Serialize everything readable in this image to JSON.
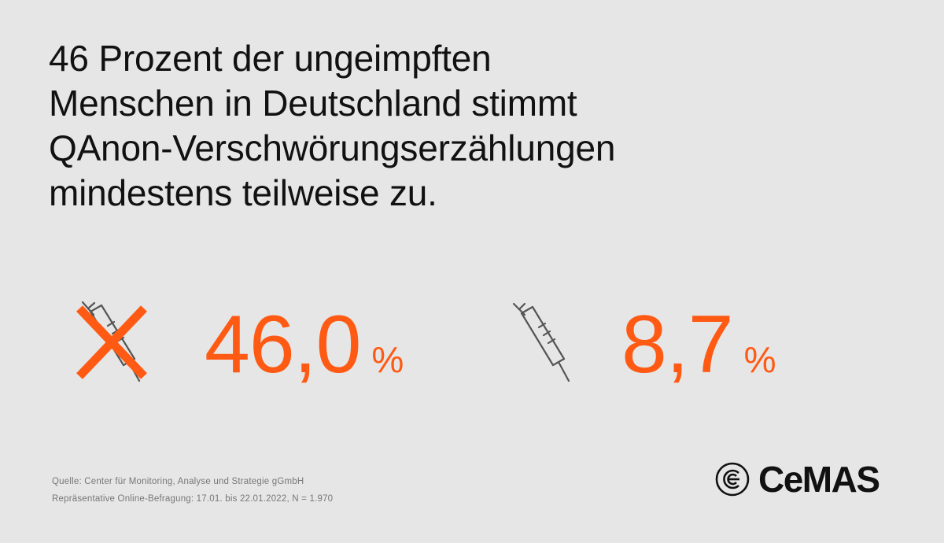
{
  "title_lines": [
    "46 Prozent der ungeimpften",
    "Menschen in Deutschland stimmt",
    "QAnon-Verschwörungserzählungen",
    "mindestens teilweise zu."
  ],
  "chart_data": {
    "type": "table",
    "title": "46 Prozent der ungeimpften Menschen in Deutschland stimmt QAnon-Verschwörungserzählungen mindestens teilweise zu.",
    "categories": [
      "ungeimpft",
      "geimpft"
    ],
    "values": [
      46.0,
      8.7
    ],
    "unit": "%",
    "labels": [
      "46,0",
      "8,7"
    ]
  },
  "stats": {
    "unvaccinated": {
      "value_text": "46,0",
      "unit": "%",
      "icon": "crossed-syringe-icon"
    },
    "vaccinated": {
      "value_text": "8,7",
      "unit": "%",
      "icon": "syringe-icon"
    }
  },
  "footer": {
    "source": "Quelle: Center für Monitoring, Analyse und Strategie gGmbH",
    "survey": "Repräsentative Online-Befragung: 17.01. bis 22.01.2022, N = 1.970"
  },
  "logo": {
    "text": "CeMAS"
  },
  "colors": {
    "accent": "#ff5a14",
    "background": "#e6e6e6",
    "text": "#111111",
    "muted": "#777777",
    "icon": "#555555"
  }
}
